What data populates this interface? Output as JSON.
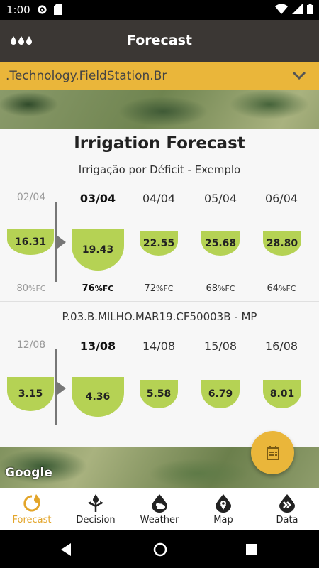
{
  "status": {
    "time": "1:00"
  },
  "appbar": {
    "title": "Forecast",
    "menu_icon": "three-drops-icon"
  },
  "station": {
    "name": ".Technology.FieldStation.Br"
  },
  "map": {
    "attribution": "Google"
  },
  "card": {
    "heading": "Irrigation Forecast",
    "plots": [
      {
        "title": "Irrigação por Déficit - Exemplo",
        "days": [
          {
            "date": "02/04",
            "value": "16.31",
            "fc_num": "80",
            "fc_unit": "%FC",
            "state": "past"
          },
          {
            "date": "03/04",
            "value": "19.43",
            "fc_num": "76",
            "fc_unit": "%FC",
            "state": "today"
          },
          {
            "date": "04/04",
            "value": "22.55",
            "fc_num": "72",
            "fc_unit": "%FC",
            "state": "future"
          },
          {
            "date": "05/04",
            "value": "25.68",
            "fc_num": "68",
            "fc_unit": "%FC",
            "state": "future"
          },
          {
            "date": "06/04",
            "value": "28.80",
            "fc_num": "64",
            "fc_unit": "%FC",
            "state": "future"
          }
        ]
      },
      {
        "title": "P.03.B.MILHO.MAR19.CF50003B - MP",
        "days": [
          {
            "date": "12/08",
            "value": "3.15",
            "state": "past"
          },
          {
            "date": "13/08",
            "value": "4.36",
            "state": "today"
          },
          {
            "date": "14/08",
            "value": "5.58",
            "state": "future"
          },
          {
            "date": "15/08",
            "value": "6.79",
            "state": "future"
          },
          {
            "date": "16/08",
            "value": "8.01",
            "state": "future"
          }
        ]
      }
    ]
  },
  "fab": {
    "icon": "calendar-icon"
  },
  "bottomnav": {
    "items": [
      {
        "label": "Forecast",
        "icon": "forecast-icon",
        "active": true
      },
      {
        "label": "Decision",
        "icon": "decision-icon",
        "active": false
      },
      {
        "label": "Weather",
        "icon": "weather-icon",
        "active": false
      },
      {
        "label": "Map",
        "icon": "map-icon",
        "active": false
      },
      {
        "label": "Data",
        "icon": "data-icon",
        "active": false
      }
    ]
  },
  "colors": {
    "accent": "#eab63a",
    "bowl": "#b5d254",
    "appbar": "#3b3734"
  }
}
